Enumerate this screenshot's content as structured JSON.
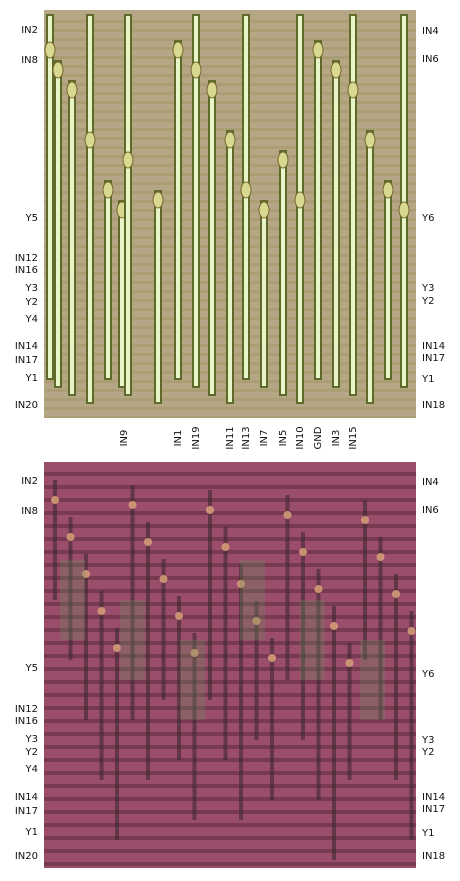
{
  "top_image": {
    "left_labels": [
      "IN2",
      "IN8",
      "Y5",
      "IN12",
      "IN16",
      "Y3",
      "Y2",
      "Y4",
      "IN14",
      "IN17",
      "Y1",
      "IN20"
    ],
    "right_labels": [
      "IN4",
      "IN6",
      "Y6",
      "Y3",
      "Y2",
      "IN14",
      "IN17",
      "Y1",
      "IN18"
    ],
    "bottom_labels": [
      "IN9",
      "IN1",
      "IN19",
      "IN11",
      "IN13",
      "IN7",
      "IN5",
      "IN10",
      "GND",
      "IN3",
      "IN15"
    ]
  },
  "bottom_image": {
    "left_labels": [
      "IN2",
      "IN8",
      "Y5",
      "IN12",
      "IN16",
      "Y3",
      "Y2",
      "Y4",
      "IN14",
      "IN17",
      "Y1",
      "IN20"
    ],
    "right_labels": [
      "IN4",
      "IN6",
      "Y6",
      "Y3",
      "Y2",
      "IN14",
      "IN17",
      "Y1",
      "IN18"
    ]
  }
}
